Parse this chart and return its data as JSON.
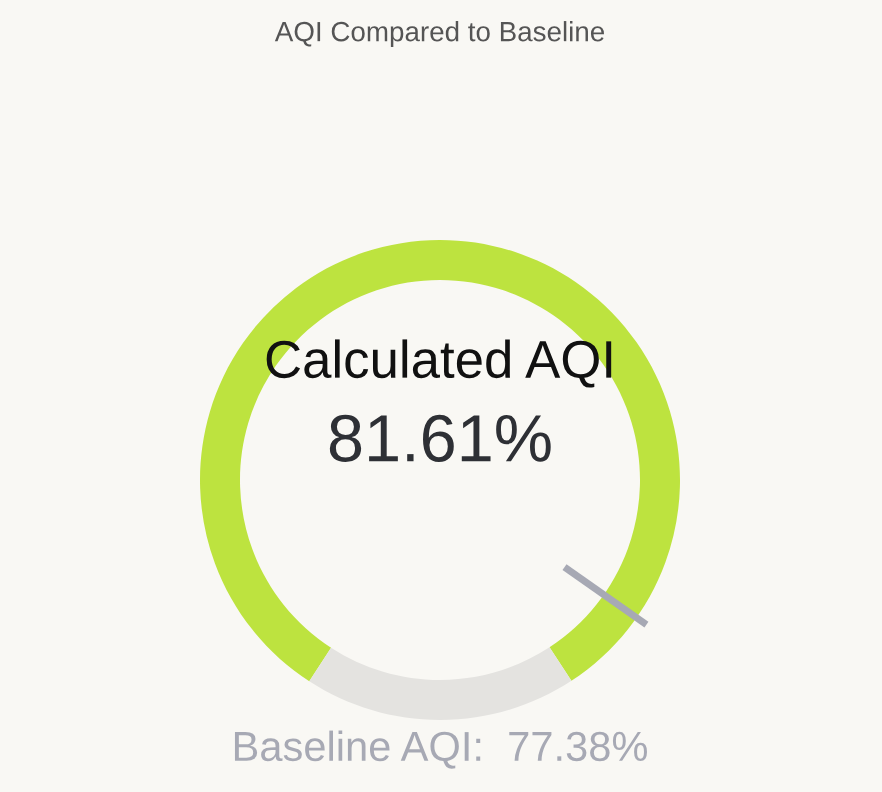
{
  "chart_data": {
    "type": "donut",
    "title": "AQI Compared to Baseline",
    "categories": [
      null,
      null
    ],
    "values": [
      81.61,
      18.39
    ],
    "colors": [
      "#bde33f",
      "#e4e3e0"
    ],
    "value_labels": [
      "81.61%",
      null
    ],
    "annotations": [
      "Calculated AQI",
      "Baseline AQI:  77.38%"
    ]
  }
}
